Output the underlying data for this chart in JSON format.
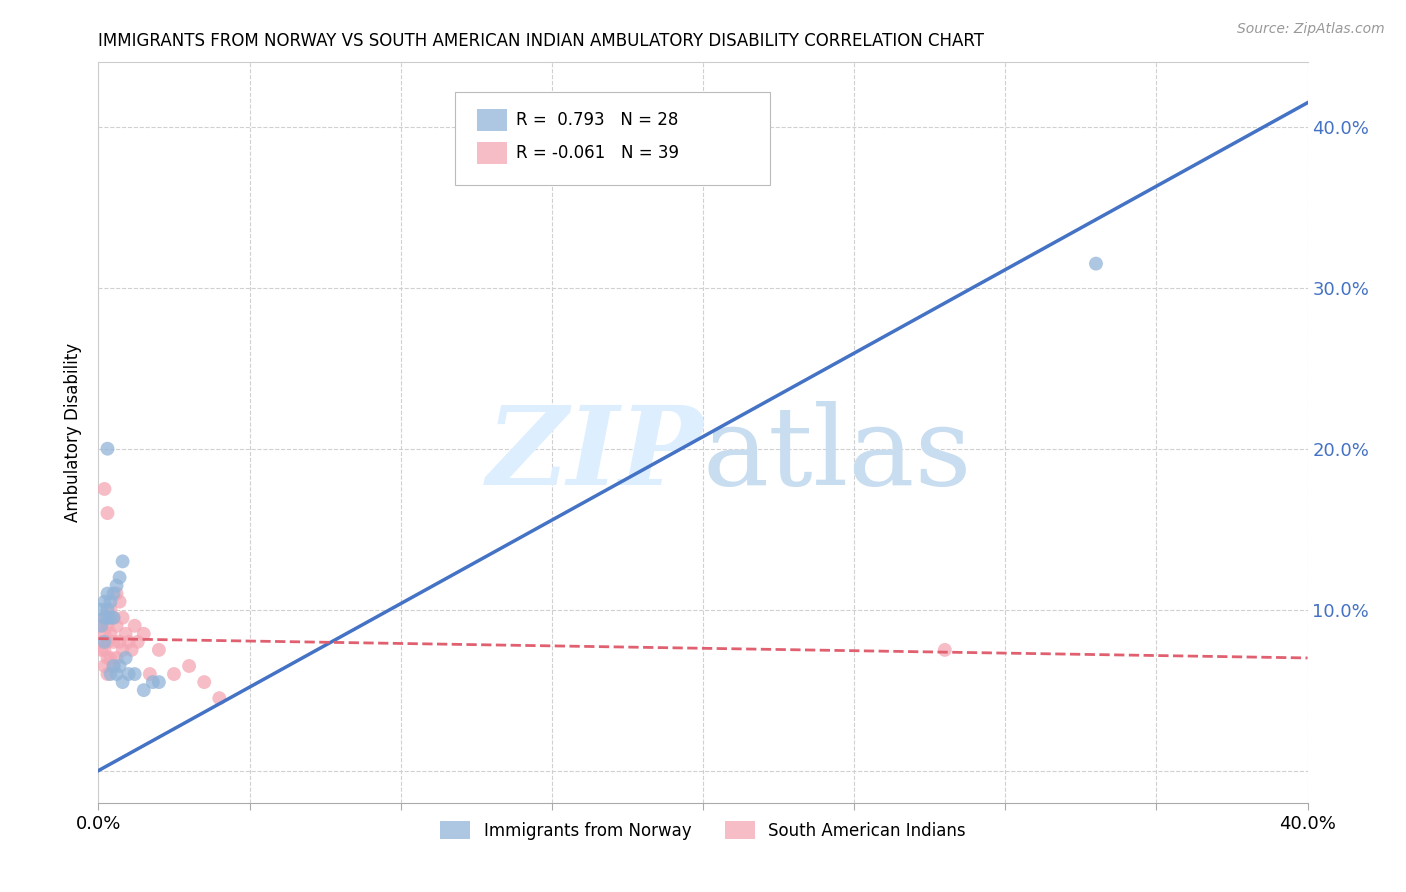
{
  "title": "IMMIGRANTS FROM NORWAY VS SOUTH AMERICAN INDIAN AMBULATORY DISABILITY CORRELATION CHART",
  "source": "Source: ZipAtlas.com",
  "ylabel": "Ambulatory Disability",
  "xmin": 0.0,
  "xmax": 0.4,
  "ymin": -0.02,
  "ymax": 0.44,
  "xticks": [
    0.0,
    0.05,
    0.1,
    0.15,
    0.2,
    0.25,
    0.3,
    0.35,
    0.4
  ],
  "yticks": [
    0.0,
    0.1,
    0.2,
    0.3,
    0.4
  ],
  "norway_R": 0.793,
  "norway_N": 28,
  "sa_indian_R": -0.061,
  "sa_indian_N": 39,
  "norway_color": "#92b4d8",
  "sa_indian_color": "#f4a7b4",
  "norway_line_color": "#4472c4",
  "sa_indian_line_color": "#e06070",
  "background_color": "#ffffff",
  "grid_color": "#d0d0d0",
  "watermark_color": "#ddeeff",
  "legend_label_norway": "Immigrants from Norway",
  "legend_label_sa": "South American Indians",
  "norway_line_x0": 0.0,
  "norway_line_y0": 0.0,
  "norway_line_x1": 0.4,
  "norway_line_y1": 0.415,
  "sa_line_x0": 0.0,
  "sa_line_y0": 0.082,
  "sa_line_x1": 0.4,
  "sa_line_y1": 0.07,
  "norway_x": [
    0.001,
    0.001,
    0.002,
    0.002,
    0.002,
    0.003,
    0.003,
    0.003,
    0.004,
    0.004,
    0.004,
    0.005,
    0.005,
    0.005,
    0.006,
    0.006,
    0.007,
    0.007,
    0.008,
    0.008,
    0.009,
    0.01,
    0.012,
    0.015,
    0.018,
    0.02,
    0.33,
    0.003
  ],
  "norway_y": [
    0.09,
    0.1,
    0.095,
    0.105,
    0.08,
    0.11,
    0.095,
    0.1,
    0.105,
    0.095,
    0.06,
    0.11,
    0.095,
    0.065,
    0.115,
    0.06,
    0.12,
    0.065,
    0.13,
    0.055,
    0.07,
    0.06,
    0.06,
    0.05,
    0.055,
    0.055,
    0.315,
    0.2
  ],
  "sa_x": [
    0.001,
    0.001,
    0.001,
    0.002,
    0.002,
    0.002,
    0.002,
    0.003,
    0.003,
    0.003,
    0.003,
    0.004,
    0.004,
    0.004,
    0.005,
    0.005,
    0.005,
    0.006,
    0.006,
    0.006,
    0.007,
    0.007,
    0.008,
    0.008,
    0.009,
    0.01,
    0.011,
    0.012,
    0.013,
    0.015,
    0.017,
    0.02,
    0.025,
    0.03,
    0.035,
    0.04,
    0.28,
    0.002,
    0.003
  ],
  "sa_y": [
    0.08,
    0.09,
    0.075,
    0.085,
    0.075,
    0.065,
    0.095,
    0.08,
    0.09,
    0.07,
    0.06,
    0.1,
    0.085,
    0.07,
    0.095,
    0.08,
    0.065,
    0.11,
    0.09,
    0.07,
    0.105,
    0.08,
    0.095,
    0.075,
    0.085,
    0.08,
    0.075,
    0.09,
    0.08,
    0.085,
    0.06,
    0.075,
    0.06,
    0.065,
    0.055,
    0.045,
    0.075,
    0.175,
    0.16
  ]
}
